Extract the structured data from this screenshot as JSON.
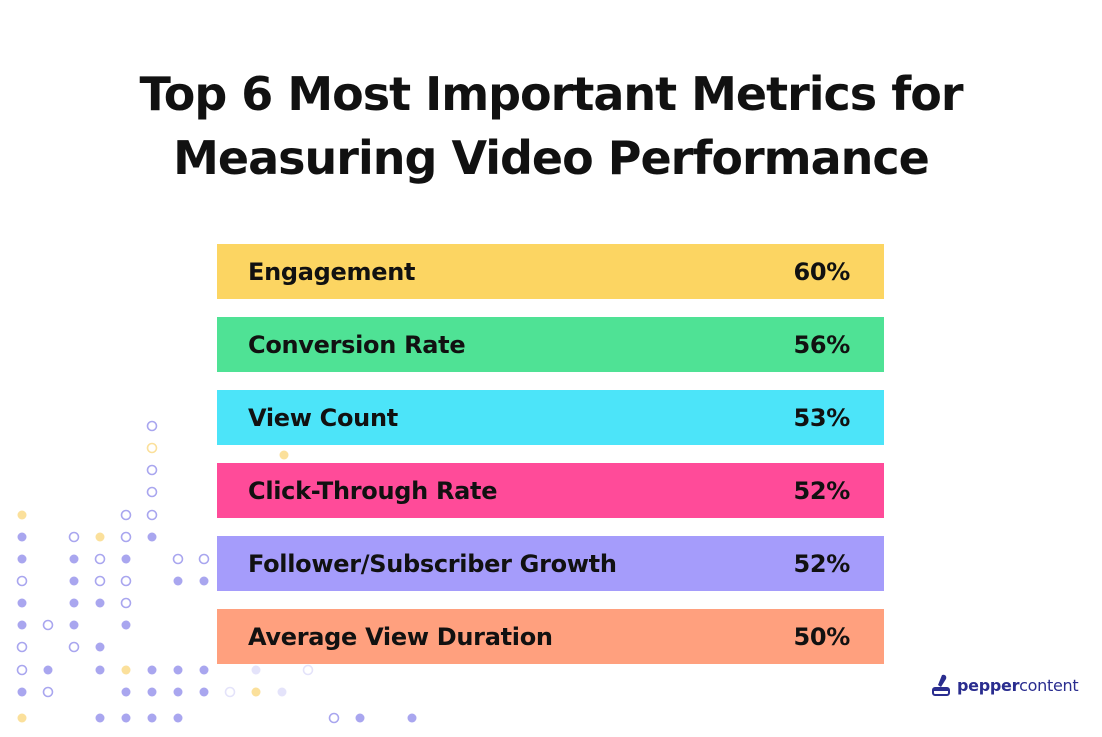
{
  "colors": {
    "dot_purple": "#a9a6ef",
    "dot_light": "#e4e3fa",
    "dot_yellow": "#fbe09b",
    "brand": "#2a2d8f"
  },
  "brand": {
    "name_bold": "pepper",
    "name_regular": "content",
    "icon": "pepper-pen-icon"
  },
  "chart_data": {
    "type": "bar",
    "title_lines": [
      "Top 6 Most Important Metrics for",
      "Measuring Video Performance"
    ],
    "orientation": "horizontal-list",
    "unit": "%",
    "categories": [
      "Engagement",
      "Conversion Rate",
      "View Count",
      "Click-Through Rate",
      "Follower/Subscriber Growth",
      "Average View Duration"
    ],
    "values": [
      60,
      56,
      53,
      52,
      52,
      50
    ],
    "value_labels": [
      "60%",
      "56%",
      "53%",
      "52%",
      "52%",
      "50%"
    ],
    "bar_colors": [
      "#fcd562",
      "#4fe295",
      "#4ce4f9",
      "#ff4b99",
      "#a59cfb",
      "#ffa07e"
    ],
    "legend": "none",
    "grid": false
  }
}
